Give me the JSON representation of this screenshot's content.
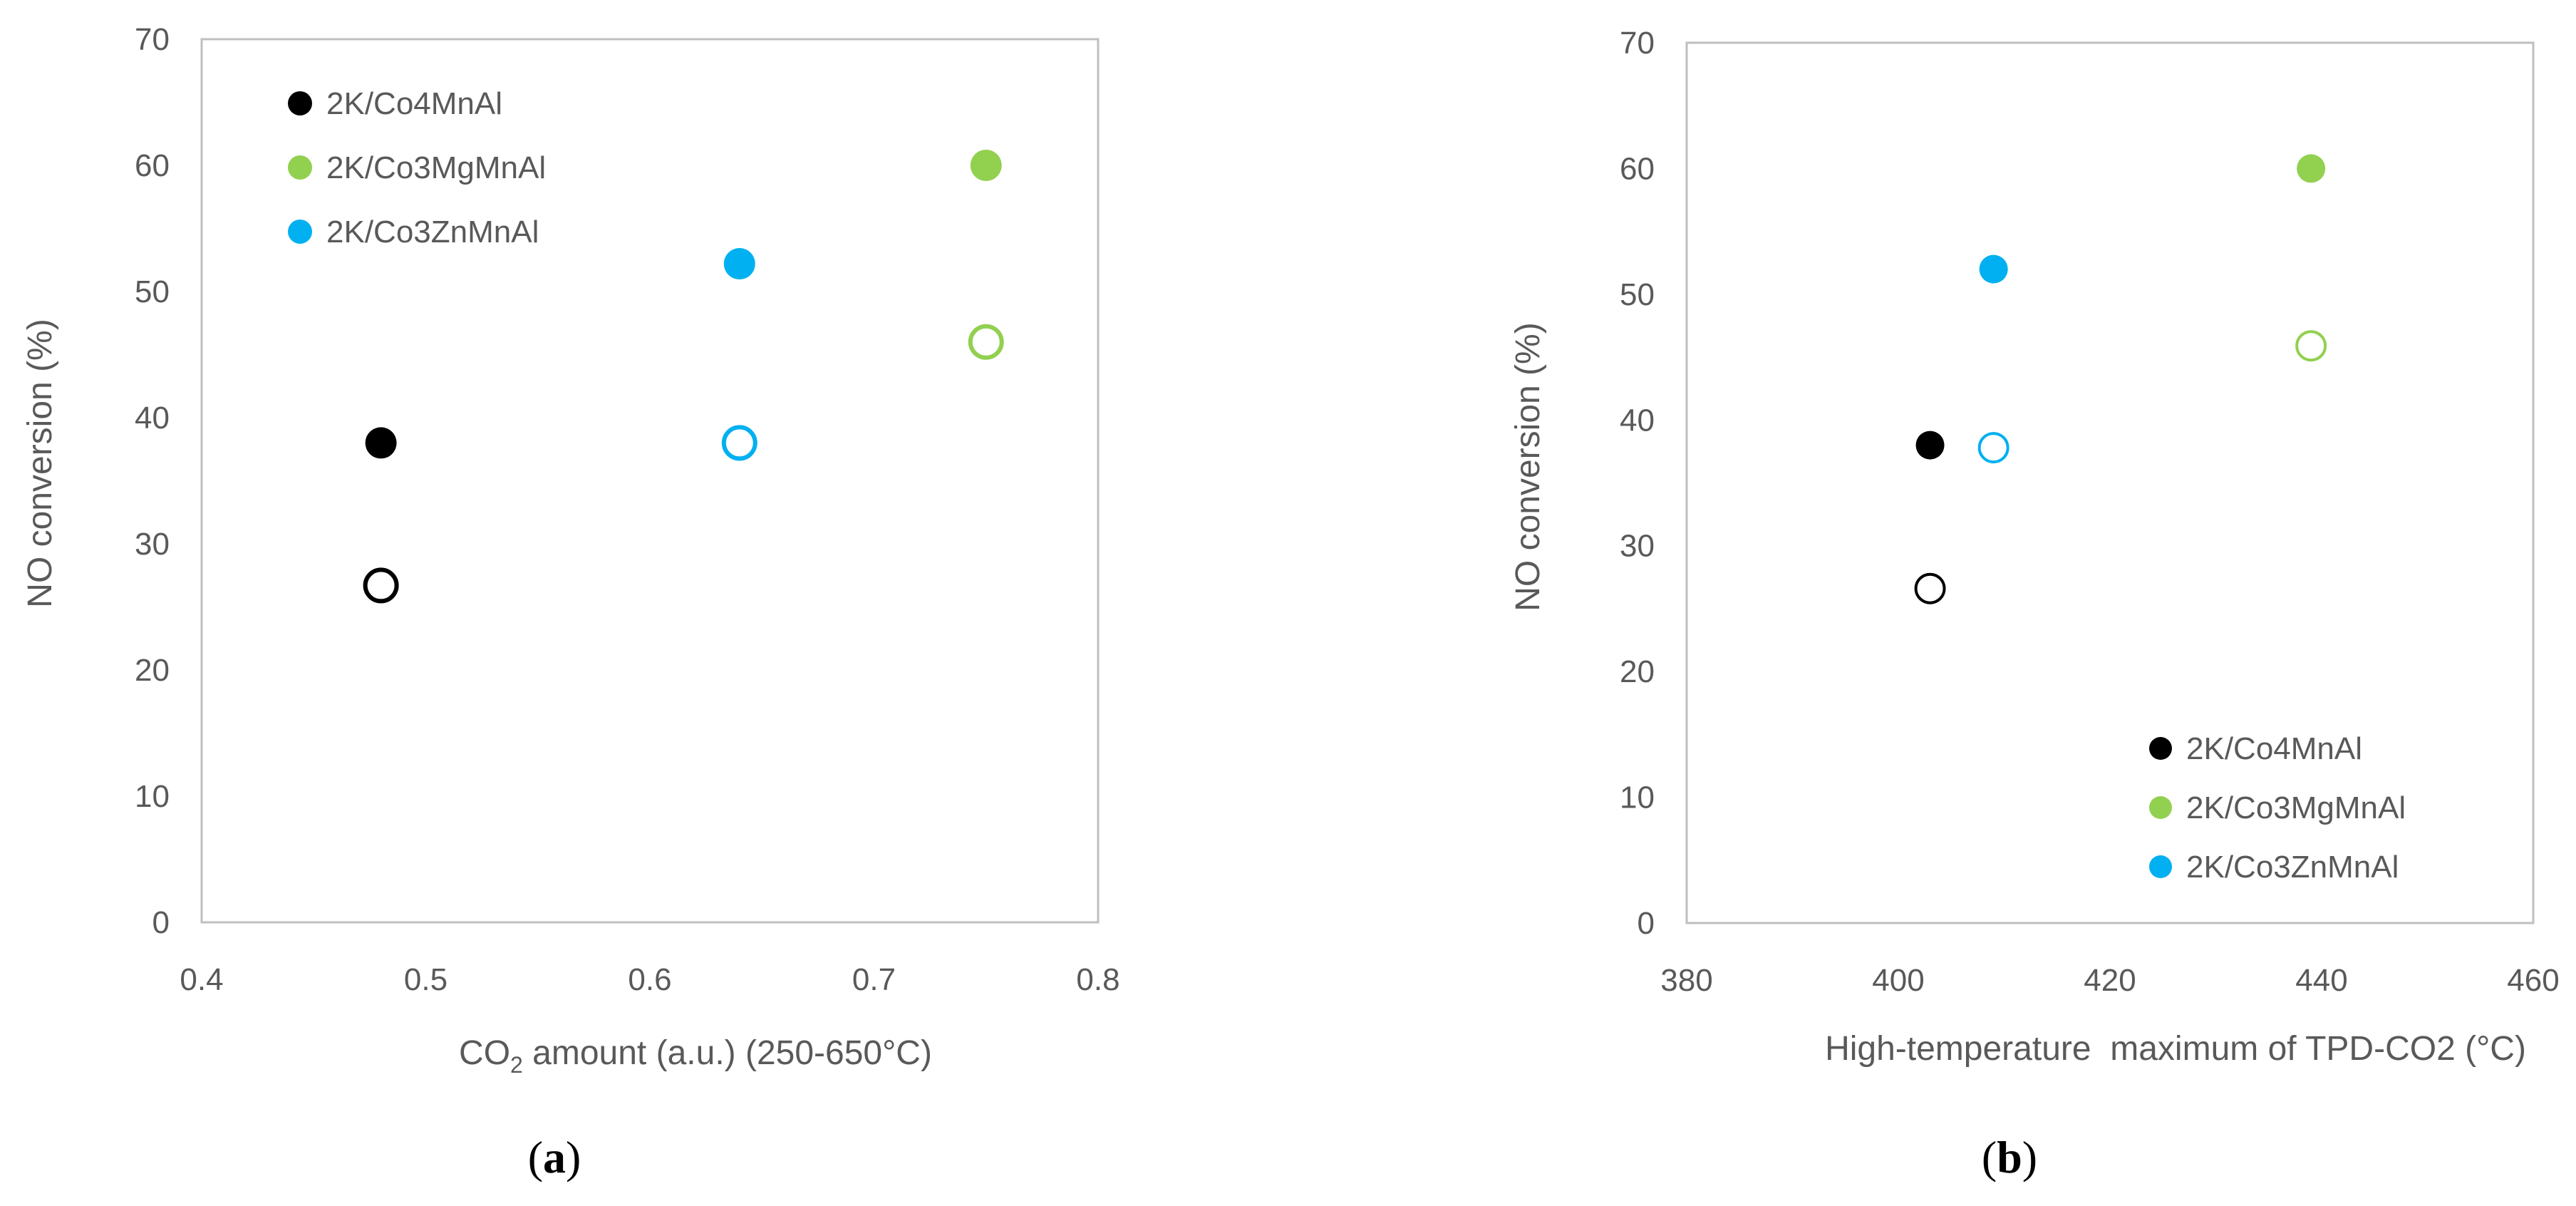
{
  "colors": {
    "axis": "#bfbfbf",
    "text": "#595959",
    "Co4MnAl": "#000000",
    "Co3MgMnAl": "#92d050",
    "Co3ZnMnAl": "#00b0f0"
  },
  "chart_data": [
    {
      "type": "scatter",
      "panel_open": "(",
      "panel_letter": "a",
      "panel_close": ")",
      "xlabel_pre": "CO",
      "xlabel_sub": "2",
      "xlabel_post": " amount (a.u.) (250-650°C)",
      "ylabel": "NO conversion (%)",
      "xlim": [
        0.4,
        0.8
      ],
      "ylim": [
        0,
        70
      ],
      "x_ticks": [
        "0.4",
        "0.5",
        "0.6",
        "0.7",
        "0.8"
      ],
      "y_ticks": [
        "0",
        "10",
        "20",
        "30",
        "40",
        "50",
        "60",
        "70"
      ],
      "grid": false,
      "legend_position": "top-left",
      "series": [
        {
          "name": "2K/Co4MnAl",
          "color_key": "Co4MnAl",
          "filled": {
            "x": 0.48,
            "y": 38
          },
          "open": {
            "x": 0.48,
            "y": 26.7
          }
        },
        {
          "name": "2K/Co3MgMnAl",
          "color_key": "Co3MgMnAl",
          "filled": {
            "x": 0.75,
            "y": 60
          },
          "open": {
            "x": 0.75,
            "y": 46
          }
        },
        {
          "name": "2K/Co3ZnMnAl",
          "color_key": "Co3ZnMnAl",
          "filled": {
            "x": 0.64,
            "y": 52.2
          },
          "open": {
            "x": 0.64,
            "y": 38
          }
        }
      ]
    },
    {
      "type": "scatter",
      "panel_open": "(",
      "panel_letter": "b",
      "panel_close": ")",
      "xlabel": "High-temperature  maximum of TPD-CO2 (°C)",
      "ylabel": "NO conversion (%)",
      "xlim": [
        380,
        460
      ],
      "ylim": [
        0,
        70
      ],
      "x_ticks": [
        "380",
        "400",
        "420",
        "440",
        "460"
      ],
      "y_ticks": [
        "0",
        "10",
        "20",
        "30",
        "40",
        "50",
        "60",
        "70"
      ],
      "grid": false,
      "legend_position": "bottom-right",
      "series": [
        {
          "name": "2K/Co4MnAl",
          "color_key": "Co4MnAl",
          "filled": {
            "x": 403,
            "y": 38
          },
          "open": {
            "x": 403,
            "y": 26.6
          }
        },
        {
          "name": "2K/Co3MgMnAl",
          "color_key": "Co3MgMnAl",
          "filled": {
            "x": 439,
            "y": 60
          },
          "open": {
            "x": 439,
            "y": 45.9
          }
        },
        {
          "name": "2K/Co3ZnMnAl",
          "color_key": "Co3ZnMnAl",
          "filled": {
            "x": 409,
            "y": 52
          },
          "open": {
            "x": 409,
            "y": 37.8
          }
        }
      ]
    }
  ]
}
